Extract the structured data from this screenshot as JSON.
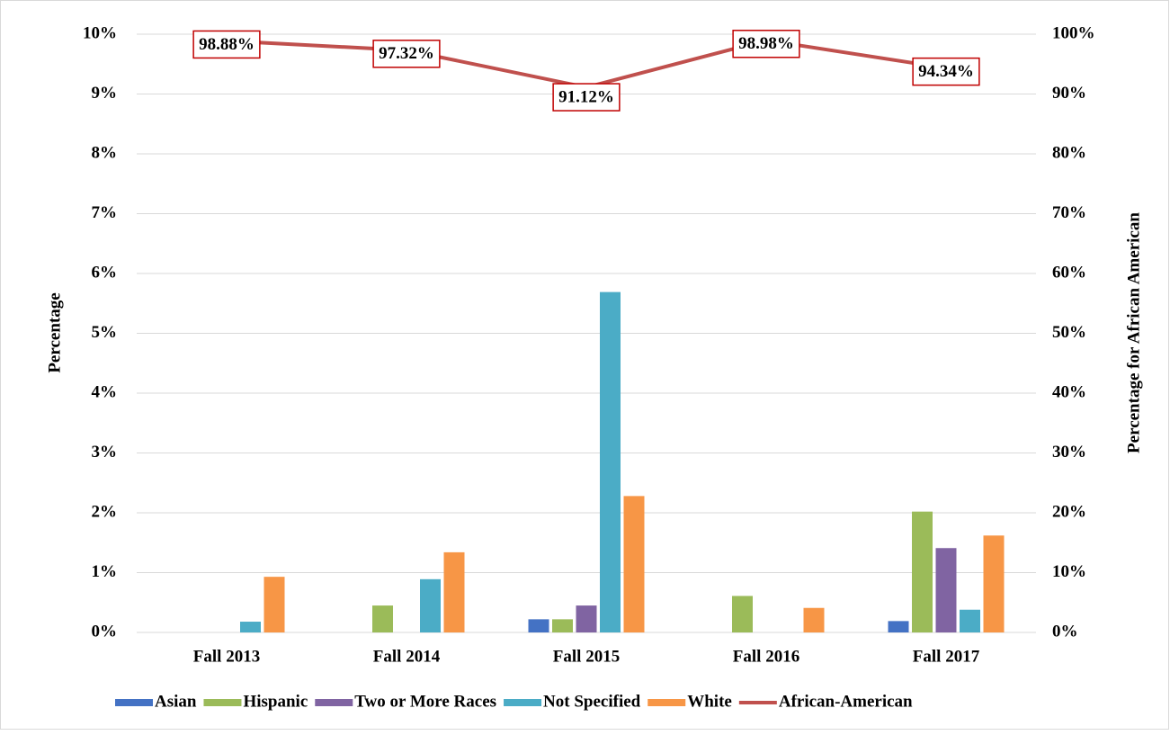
{
  "chart_data": {
    "type": "bar",
    "categories": [
      "Fall 2013",
      "Fall 2014",
      "Fall 2015",
      "Fall 2016",
      "Fall 2017"
    ],
    "ylabel": "Percentage",
    "y2label": "Percentage for African American",
    "ylim": [
      0,
      10
    ],
    "yticks": [
      {
        "value": 0,
        "label": "0%"
      },
      {
        "value": 1,
        "label": "1%"
      },
      {
        "value": 2,
        "label": "2%"
      },
      {
        "value": 3,
        "label": "3%"
      },
      {
        "value": 4,
        "label": "4%"
      },
      {
        "value": 5,
        "label": "5%"
      },
      {
        "value": 6,
        "label": "6%"
      },
      {
        "value": 7,
        "label": "7%"
      },
      {
        "value": 8,
        "label": "8%"
      },
      {
        "value": 9,
        "label": "9%"
      },
      {
        "value": 10,
        "label": "10%"
      }
    ],
    "y2lim": [
      0,
      100
    ],
    "y2ticks": [
      {
        "value": 0,
        "label": "0%"
      },
      {
        "value": 10,
        "label": "10%"
      },
      {
        "value": 20,
        "label": "20%"
      },
      {
        "value": 30,
        "label": "30%"
      },
      {
        "value": 40,
        "label": "40%"
      },
      {
        "value": 50,
        "label": "50%"
      },
      {
        "value": 60,
        "label": "60%"
      },
      {
        "value": 70,
        "label": "70%"
      },
      {
        "value": 80,
        "label": "80%"
      },
      {
        "value": 90,
        "label": "90%"
      },
      {
        "value": 100,
        "label": "100%"
      }
    ],
    "grid": true,
    "legend": "bottom",
    "series": [
      {
        "name": "Asian",
        "color": "#4472c4",
        "values": [
          0,
          0,
          0.22,
          0,
          0.19
        ]
      },
      {
        "name": "Hispanic",
        "color": "#9bbb59",
        "values": [
          0,
          0.45,
          0.22,
          0.61,
          2.02
        ]
      },
      {
        "name": "Two or More Races",
        "color": "#8064a2",
        "values": [
          0,
          0,
          0.45,
          0,
          1.41
        ]
      },
      {
        "name": "Not Specified",
        "color": "#4bacc6",
        "values": [
          0.18,
          0.89,
          5.69,
          0,
          0.38
        ]
      },
      {
        "name": "White",
        "color": "#f79646",
        "values": [
          0.93,
          1.34,
          2.28,
          0.41,
          1.62
        ]
      },
      {
        "name": "African-American",
        "type": "line",
        "axis": "y2",
        "color": "#c0504d",
        "values": [
          98.88,
          97.32,
          91.12,
          98.98,
          94.34
        ],
        "value_labels": [
          "98.88%",
          "97.32%",
          "91.12%",
          "98.98%",
          "94.34%"
        ]
      }
    ]
  }
}
